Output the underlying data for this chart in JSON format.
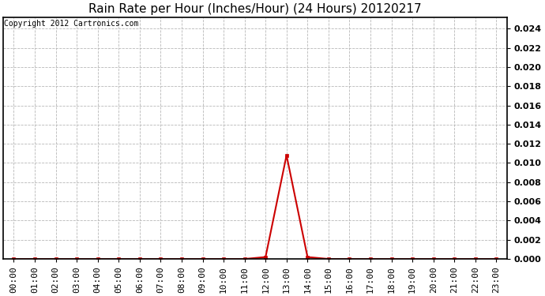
{
  "title": "Rain Rate per Hour (Inches/Hour) (24 Hours) 20120217",
  "copyright": "Copyright 2012 Cartronics.com",
  "line_color": "#cc0000",
  "marker_color": "#cc0000",
  "background_color": "#ffffff",
  "plot_bg_color": "#ffffff",
  "grid_color": "#b0b0b0",
  "ylim": [
    0,
    0.0252
  ],
  "yticks": [
    0.0,
    0.002,
    0.004,
    0.006,
    0.008,
    0.01,
    0.012,
    0.014,
    0.016,
    0.018,
    0.02,
    0.022,
    0.024
  ],
  "hours": [
    0,
    1,
    2,
    3,
    4,
    5,
    6,
    7,
    8,
    9,
    10,
    11,
    12,
    13,
    14,
    15,
    16,
    17,
    18,
    19,
    20,
    21,
    22,
    23
  ],
  "values": [
    0,
    0,
    0,
    0,
    0,
    0,
    0,
    0,
    0,
    0,
    0,
    0,
    0.0002,
    0.0108,
    0.0002,
    0,
    0,
    0,
    0,
    0,
    0,
    0,
    0,
    0
  ],
  "title_fontsize": 11,
  "copyright_fontsize": 7,
  "tick_fontsize": 8,
  "ytick_fontsize": 8,
  "ytick_fontweight": "bold"
}
